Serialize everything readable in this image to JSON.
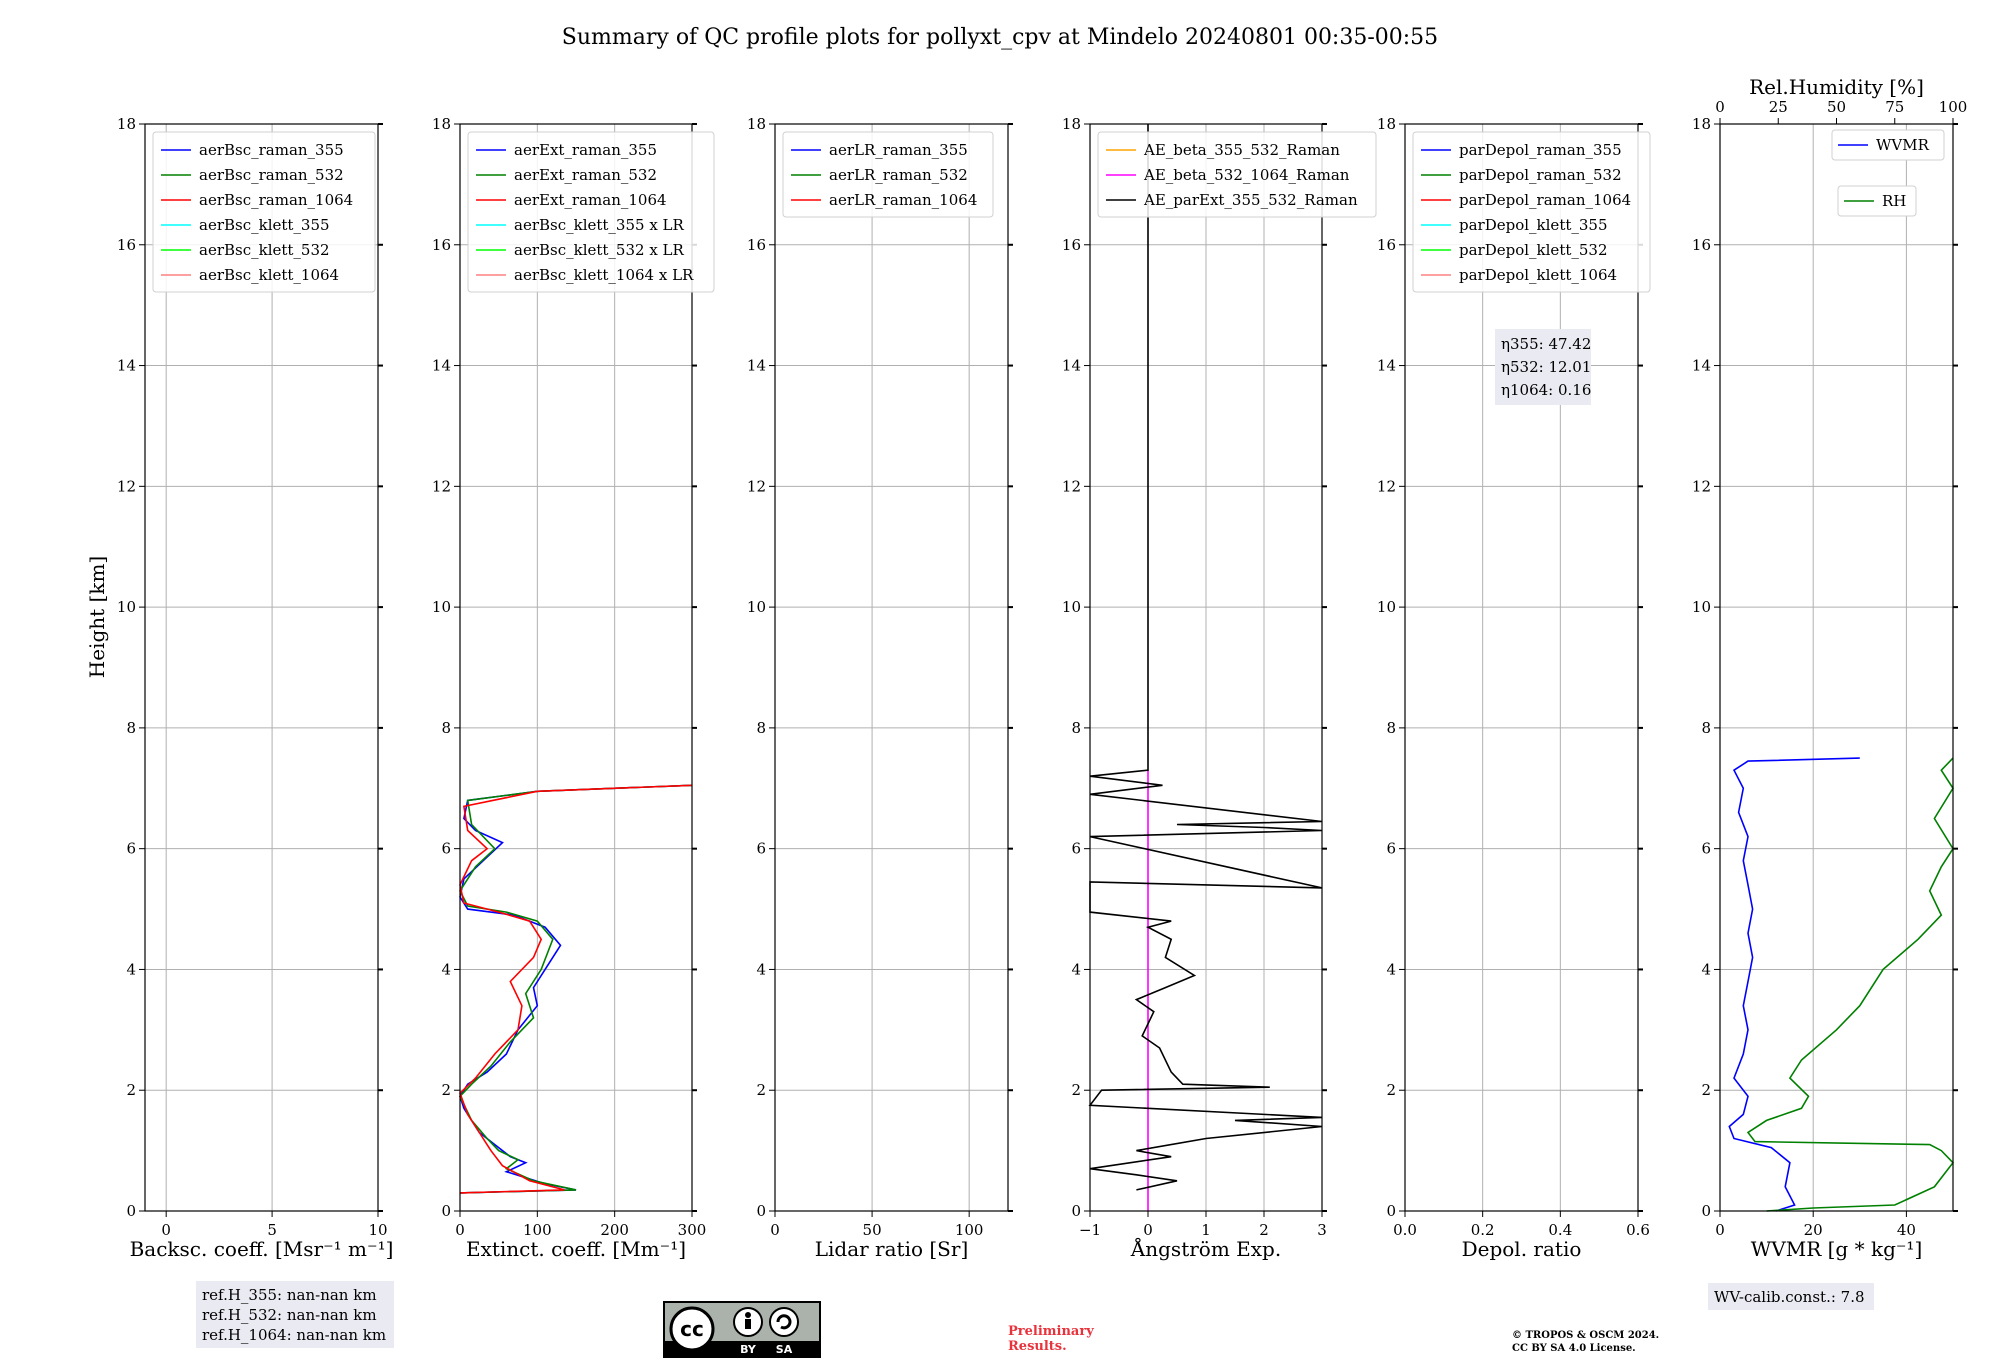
{
  "title": "Summary of QC profile plots for pollyxt_cpv at Mindelo 20240801 00:35-00:55",
  "ylabel": "Height [km]",
  "chart_data": [
    {
      "type": "line",
      "xlabel": "Backsc. coeff. [Msr⁻¹ m⁻¹]",
      "xlim": [
        -1,
        10
      ],
      "ylim": [
        0,
        18
      ],
      "xticks": [
        0,
        5,
        10
      ],
      "yticks": [
        0,
        2,
        4,
        6,
        8,
        10,
        12,
        14,
        16,
        18
      ],
      "legend": [
        {
          "name": "aerBsc_raman_355",
          "color": "#0000ff"
        },
        {
          "name": "aerBsc_raman_532",
          "color": "#008000"
        },
        {
          "name": "aerBsc_raman_1064",
          "color": "#ff0000"
        },
        {
          "name": "aerBsc_klett_355",
          "color": "#00ffff"
        },
        {
          "name": "aerBsc_klett_532",
          "color": "#00ff00"
        },
        {
          "name": "aerBsc_klett_1064",
          "color": "#ff8080"
        }
      ],
      "series": []
    },
    {
      "type": "line",
      "xlabel": "Extinct. coeff. [Mm⁻¹]",
      "xlim": [
        0,
        300
      ],
      "ylim": [
        0,
        18
      ],
      "xticks": [
        0,
        100,
        200,
        300
      ],
      "yticks": [
        0,
        2,
        4,
        6,
        8,
        10,
        12,
        14,
        16,
        18
      ],
      "legend": [
        {
          "name": "aerExt_raman_355",
          "color": "#0000ff"
        },
        {
          "name": "aerExt_raman_532",
          "color": "#008000"
        },
        {
          "name": "aerExt_raman_1064",
          "color": "#ff0000"
        },
        {
          "name": "aerBsc_klett_355 x LR",
          "color": "#00ffff"
        },
        {
          "name": "aerBsc_klett_532 x LR",
          "color": "#00ff00"
        },
        {
          "name": "aerBsc_klett_1064 x LR",
          "color": "#ff8080"
        }
      ],
      "series": [
        {
          "name": "aerExt_raman_355",
          "color": "#0000ff",
          "points": [
            [
              0,
              0.3
            ],
            [
              150,
              0.35
            ],
            [
              110,
              0.45
            ],
            [
              60,
              0.65
            ],
            [
              85,
              0.8
            ],
            [
              65,
              0.9
            ],
            [
              45,
              1.1
            ],
            [
              25,
              1.3
            ],
            [
              5,
              1.7
            ],
            [
              0,
              1.9
            ],
            [
              10,
              2.1
            ],
            [
              35,
              2.3
            ],
            [
              60,
              2.6
            ],
            [
              75,
              3.0
            ],
            [
              100,
              3.4
            ],
            [
              95,
              3.7
            ],
            [
              110,
              4.0
            ],
            [
              130,
              4.4
            ],
            [
              110,
              4.7
            ],
            [
              70,
              4.9
            ],
            [
              10,
              5.0
            ],
            [
              0,
              5.2
            ],
            [
              5,
              5.5
            ],
            [
              30,
              5.8
            ],
            [
              55,
              6.1
            ],
            [
              20,
              6.3
            ],
            [
              5,
              6.5
            ],
            [
              10,
              6.8
            ],
            [
              100,
              6.95
            ],
            [
              300,
              7.05
            ]
          ]
        },
        {
          "name": "aerExt_raman_532",
          "color": "#008000",
          "points": [
            [
              0,
              0.3
            ],
            [
              150,
              0.35
            ],
            [
              95,
              0.5
            ],
            [
              60,
              0.7
            ],
            [
              75,
              0.85
            ],
            [
              50,
              1.0
            ],
            [
              35,
              1.2
            ],
            [
              15,
              1.5
            ],
            [
              0,
              1.9
            ],
            [
              15,
              2.1
            ],
            [
              40,
              2.4
            ],
            [
              65,
              2.8
            ],
            [
              95,
              3.2
            ],
            [
              85,
              3.6
            ],
            [
              105,
              4.0
            ],
            [
              120,
              4.5
            ],
            [
              100,
              4.8
            ],
            [
              60,
              4.95
            ],
            [
              10,
              5.05
            ],
            [
              0,
              5.3
            ],
            [
              20,
              5.7
            ],
            [
              45,
              6.0
            ],
            [
              15,
              6.4
            ],
            [
              10,
              6.8
            ],
            [
              100,
              6.95
            ],
            [
              300,
              7.05
            ]
          ]
        },
        {
          "name": "aerExt_raman_1064",
          "color": "#ff0000",
          "points": [
            [
              0,
              0.3
            ],
            [
              135,
              0.35
            ],
            [
              90,
              0.5
            ],
            [
              55,
              0.75
            ],
            [
              40,
              1.0
            ],
            [
              25,
              1.3
            ],
            [
              10,
              1.6
            ],
            [
              0,
              1.95
            ],
            [
              20,
              2.2
            ],
            [
              45,
              2.6
            ],
            [
              75,
              3.0
            ],
            [
              80,
              3.4
            ],
            [
              65,
              3.8
            ],
            [
              95,
              4.2
            ],
            [
              105,
              4.5
            ],
            [
              90,
              4.8
            ],
            [
              50,
              4.95
            ],
            [
              5,
              5.1
            ],
            [
              0,
              5.4
            ],
            [
              15,
              5.8
            ],
            [
              35,
              6.0
            ],
            [
              10,
              6.3
            ],
            [
              5,
              6.7
            ],
            [
              100,
              6.95
            ],
            [
              300,
              7.05
            ]
          ]
        }
      ]
    },
    {
      "type": "line",
      "xlabel": "Lidar ratio [Sr]",
      "xlim": [
        0,
        120
      ],
      "ylim": [
        0,
        18
      ],
      "xticks": [
        0,
        50,
        100
      ],
      "yticks": [
        0,
        2,
        4,
        6,
        8,
        10,
        12,
        14,
        16,
        18
      ],
      "legend": [
        {
          "name": "aerLR_raman_355",
          "color": "#0000ff"
        },
        {
          "name": "aerLR_raman_532",
          "color": "#008000"
        },
        {
          "name": "aerLR_raman_1064",
          "color": "#ff0000"
        }
      ],
      "series": []
    },
    {
      "type": "line",
      "xlabel": "Ångström Exp.",
      "xlim": [
        -1,
        3
      ],
      "ylim": [
        0,
        18
      ],
      "xticks": [
        -1,
        0,
        1,
        2,
        3
      ],
      "yticks": [
        0,
        2,
        4,
        6,
        8,
        10,
        12,
        14,
        16,
        18
      ],
      "legend": [
        {
          "name": "AE_beta_355_532_Raman",
          "color": "#ffa500"
        },
        {
          "name": "AE_beta_532_1064_Raman",
          "color": "#ff00ff"
        },
        {
          "name": "AE_parExt_355_532_Raman",
          "color": "#000000"
        }
      ],
      "series": [
        {
          "name": "AE_beta_532_1064_Raman",
          "color": "#ff00ff",
          "points": [
            [
              0,
              0
            ],
            [
              0,
              7.3
            ]
          ]
        },
        {
          "name": "AE_parExt_355_532_Raman",
          "color": "#000000",
          "points": [
            [
              -0.2,
              0.35
            ],
            [
              0.5,
              0.5
            ],
            [
              -0.2,
              0.6
            ],
            [
              -1,
              0.7
            ],
            [
              0.4,
              0.9
            ],
            [
              -0.2,
              1.0
            ],
            [
              1.0,
              1.2
            ],
            [
              3.0,
              1.4
            ],
            [
              1.5,
              1.5
            ],
            [
              3.0,
              1.55
            ],
            [
              -1,
              1.75
            ],
            [
              -0.8,
              2.0
            ],
            [
              2.1,
              2.05
            ],
            [
              0.6,
              2.1
            ],
            [
              0.4,
              2.3
            ],
            [
              0.2,
              2.7
            ],
            [
              -0.1,
              2.9
            ],
            [
              0.1,
              3.3
            ],
            [
              -0.2,
              3.5
            ],
            [
              0.3,
              3.7
            ],
            [
              0.8,
              3.9
            ],
            [
              0.3,
              4.2
            ],
            [
              0.4,
              4.5
            ],
            [
              0,
              4.7
            ],
            [
              0.4,
              4.8
            ],
            [
              -1,
              4.95
            ],
            [
              -1,
              5.45
            ],
            [
              3.0,
              5.35
            ],
            [
              -1,
              6.2
            ],
            [
              3.0,
              6.3
            ],
            [
              2.0,
              6.35
            ],
            [
              0.5,
              6.4
            ],
            [
              3.0,
              6.45
            ],
            [
              -1,
              6.9
            ],
            [
              0.25,
              7.05
            ],
            [
              -1,
              7.2
            ],
            [
              0,
              7.3
            ],
            [
              0,
              18
            ]
          ]
        }
      ]
    },
    {
      "type": "line",
      "xlabel": "Depol. ratio",
      "xlim": [
        0.0,
        0.6
      ],
      "ylim": [
        0,
        18
      ],
      "xticks": [
        0.0,
        0.2,
        0.4,
        0.6
      ],
      "yticks": [
        0,
        2,
        4,
        6,
        8,
        10,
        12,
        14,
        16,
        18
      ],
      "legend": [
        {
          "name": "parDepol_raman_355",
          "color": "#0000ff"
        },
        {
          "name": "parDepol_raman_532",
          "color": "#008000"
        },
        {
          "name": "parDepol_raman_1064",
          "color": "#ff0000"
        },
        {
          "name": "parDepol_klett_355",
          "color": "#00ffff"
        },
        {
          "name": "parDepol_klett_532",
          "color": "#00ff00"
        },
        {
          "name": "parDepol_klett_1064",
          "color": "#ff8080"
        }
      ],
      "annotation": [
        "η355: 47.42",
        "η532: 12.01",
        "η1064: 0.16"
      ],
      "series": []
    },
    {
      "type": "line",
      "xlabel": "WVMR [g * kg⁻¹]",
      "xlim": [
        0,
        50
      ],
      "ylim": [
        0,
        18
      ],
      "xticks": [
        0,
        20,
        40
      ],
      "yticks": [
        0,
        2,
        4,
        6,
        8,
        10,
        12,
        14,
        16,
        18
      ],
      "top_axis": {
        "label": "Rel.Humidity [%]",
        "lim": [
          0,
          100
        ],
        "ticks": [
          0,
          25,
          50,
          75,
          100
        ]
      },
      "legend": [
        {
          "name": "WVMR",
          "color": "#0000ff"
        },
        {
          "name": "RH",
          "color": "#008000"
        }
      ],
      "series": [
        {
          "name": "WVMR",
          "color": "#0000ff",
          "axis": "bottom",
          "points": [
            [
              12,
              0
            ],
            [
              16,
              0.1
            ],
            [
              14,
              0.4
            ],
            [
              15,
              0.8
            ],
            [
              11,
              1.05
            ],
            [
              3,
              1.2
            ],
            [
              2,
              1.4
            ],
            [
              5,
              1.6
            ],
            [
              6,
              1.9
            ],
            [
              3,
              2.2
            ],
            [
              5,
              2.6
            ],
            [
              6,
              3.0
            ],
            [
              5,
              3.4
            ],
            [
              6,
              3.8
            ],
            [
              7,
              4.2
            ],
            [
              6,
              4.6
            ],
            [
              7,
              5.0
            ],
            [
              6,
              5.4
            ],
            [
              5,
              5.8
            ],
            [
              6,
              6.2
            ],
            [
              4,
              6.6
            ],
            [
              5,
              7.0
            ],
            [
              3,
              7.3
            ],
            [
              6,
              7.45
            ],
            [
              30,
              7.5
            ]
          ]
        },
        {
          "name": "RH",
          "color": "#008000",
          "axis": "top",
          "points": [
            [
              20,
              0
            ],
            [
              40,
              0.05
            ],
            [
              75,
              0.1
            ],
            [
              92,
              0.4
            ],
            [
              100,
              0.8
            ],
            [
              95,
              1.0
            ],
            [
              90,
              1.1
            ],
            [
              15,
              1.15
            ],
            [
              12,
              1.3
            ],
            [
              20,
              1.5
            ],
            [
              35,
              1.7
            ],
            [
              38,
              1.9
            ],
            [
              30,
              2.2
            ],
            [
              35,
              2.5
            ],
            [
              50,
              3.0
            ],
            [
              60,
              3.4
            ],
            [
              70,
              4.0
            ],
            [
              85,
              4.5
            ],
            [
              95,
              4.9
            ],
            [
              90,
              5.3
            ],
            [
              95,
              5.7
            ],
            [
              100,
              6.0
            ],
            [
              92,
              6.5
            ],
            [
              100,
              7.0
            ],
            [
              95,
              7.3
            ],
            [
              100,
              7.5
            ]
          ]
        }
      ]
    }
  ],
  "notes": {
    "refh": [
      "ref.H_355: nan-nan km",
      "ref.H_532: nan-nan km",
      "ref.H_1064: nan-nan km"
    ],
    "wv_calib": "WV-calib.const.: 7.8",
    "preliminary_1": "Preliminary",
    "preliminary_2": "Results.",
    "copyright_1": "© TROPOS & OSCM 2024.",
    "copyright_2": "CC BY SA 4.0 License.",
    "cc_badge": {
      "cc": "cc",
      "by": "BY",
      "sa": "SA"
    }
  }
}
